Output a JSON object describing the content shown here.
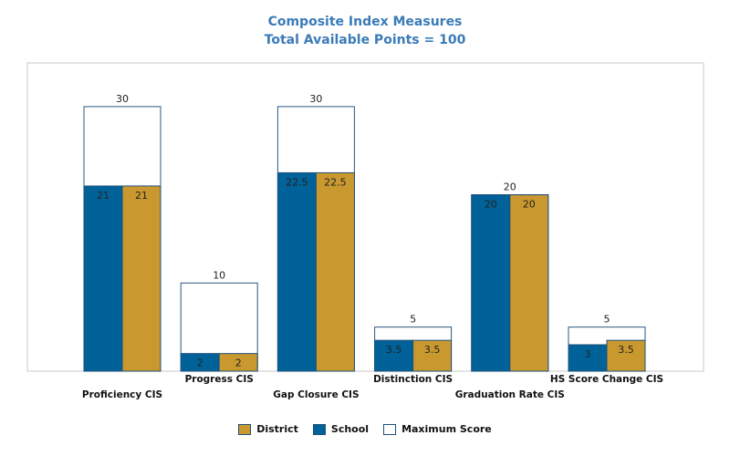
{
  "title_line1": "Composite Index Measures",
  "title_line2": "Total Available Points = 100",
  "colors": {
    "district": "#c9992f",
    "school": "#006298",
    "maximum": "#ffffff",
    "title": "#3a7bb8",
    "frame": "#c8c8c8"
  },
  "legend": [
    {
      "key": "district",
      "label": "District"
    },
    {
      "key": "school",
      "label": "School"
    },
    {
      "key": "maximum",
      "label": "Maximum Score"
    }
  ],
  "chart_data": {
    "type": "bar",
    "title": "Composite Index Measures",
    "subtitle": "Total Available Points = 100",
    "categories": [
      "Proficiency CIS",
      "Progress CIS",
      "Gap Closure CIS",
      "Distinction CIS",
      "Graduation Rate CIS",
      "HS Score Change CIS"
    ],
    "series": [
      {
        "name": "School",
        "values": [
          21,
          2,
          22.5,
          3.5,
          20,
          3
        ]
      },
      {
        "name": "District",
        "values": [
          21,
          2,
          22.5,
          3.5,
          20,
          3.5
        ]
      },
      {
        "name": "Maximum Score",
        "values": [
          30,
          10,
          30,
          5,
          20,
          5
        ]
      }
    ],
    "value_labels": {
      "school": [
        "21",
        "2",
        "22.5",
        "3.5",
        "20",
        "3"
      ],
      "district": [
        "21",
        "2",
        "22.5",
        "3.5",
        "20",
        "3.5"
      ],
      "maximum": [
        "30",
        "10",
        "30",
        "5",
        "20",
        "5"
      ]
    },
    "ylim": [
      0,
      35
    ],
    "legend_position": "bottom",
    "grid": false
  }
}
